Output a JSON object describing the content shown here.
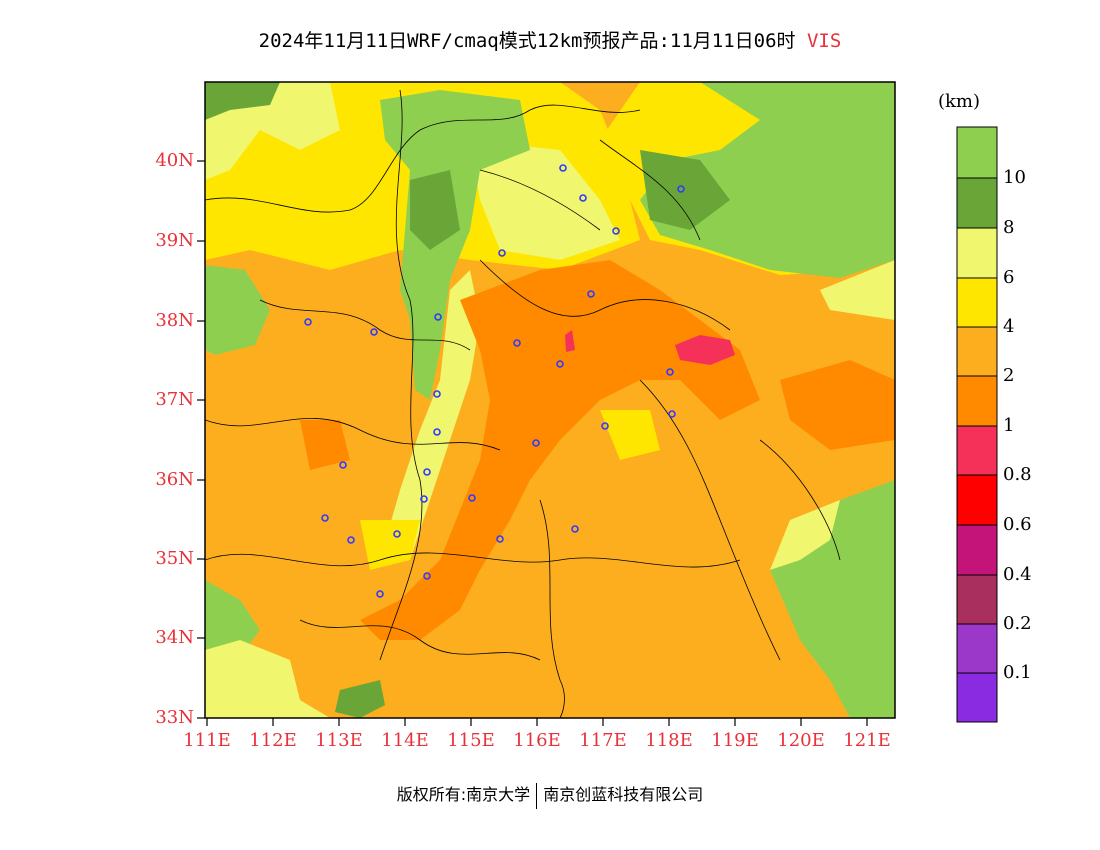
{
  "title": {
    "main": "2024年11月11日WRF/cmaq模式12km预报产品:11月11日06时",
    "variable": "VIS"
  },
  "map": {
    "lat_labels": [
      "40N",
      "39N",
      "38N",
      "37N",
      "36N",
      "35N",
      "34N",
      "33N"
    ],
    "lon_labels": [
      "111E",
      "112E",
      "113E",
      "114E",
      "115E",
      "116E",
      "117E",
      "118E",
      "119E",
      "120E",
      "121E"
    ]
  },
  "colorbar": {
    "unit": "(km)",
    "labels": [
      "10",
      "8",
      "6",
      "4",
      "2",
      "1",
      "0.8",
      "0.6",
      "0.4",
      "0.2",
      "0.1"
    ],
    "colors": [
      "#8fcf50",
      "#6aa637",
      "#f0f66e",
      "#ffe600",
      "#fcae1f",
      "#ff8a00",
      "#f5315a",
      "#ff0000",
      "#c4147a",
      "#a9305e",
      "#9b38c9",
      "#8a2be2"
    ]
  },
  "footer": {
    "left": "版权所有:南京大学",
    "right": "南京创蓝科技有限公司"
  }
}
